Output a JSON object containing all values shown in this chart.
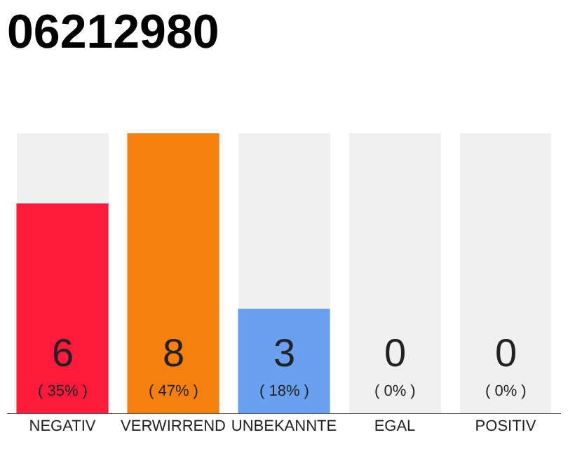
{
  "chart_data": {
    "type": "bar",
    "title": "06212980",
    "categories": [
      "NEGATIV",
      "VERWIRREND",
      "UNBEKANNTE",
      "EGAL",
      "POSITIV"
    ],
    "values": [
      6,
      8,
      3,
      0,
      0
    ],
    "value_labels": [
      "6",
      "8",
      "3",
      "0",
      "0"
    ],
    "colors": [
      "#ff1a3c",
      "#f5800e",
      "#6aa0f0",
      "#f0f0f0",
      "#f0f0f0"
    ],
    "ylim": [
      0,
      8
    ],
    "tick_labels": "x",
    "grid": false,
    "annotations": [
      "( 35% )",
      "( 47% )",
      "( 18% )",
      "( 0% )",
      "( 0% )"
    ]
  }
}
